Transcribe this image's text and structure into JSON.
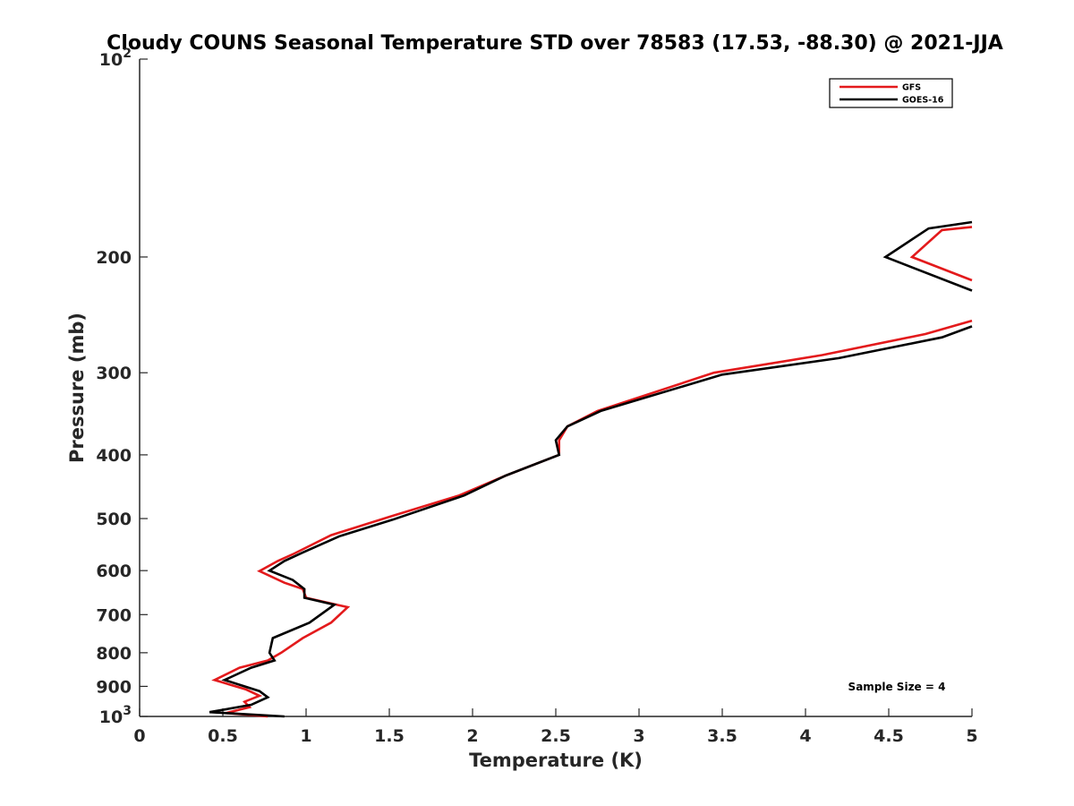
{
  "chart_data": {
    "type": "line",
    "title": "Cloudy COUNS Seasonal Temperature STD over 78583 (17.53, -88.30) @ 2021-JJA",
    "xlabel": "Temperature (K)",
    "ylabel": "Pressure (mb)",
    "xlim": [
      0,
      5
    ],
    "ylim": [
      100,
      1000
    ],
    "yscale": "log",
    "yreversed": true,
    "grid": false,
    "legend_location": "top-right",
    "x_ticks": [
      {
        "value": 0,
        "label": "0"
      },
      {
        "value": 0.5,
        "label": "0.5"
      },
      {
        "value": 1,
        "label": "1"
      },
      {
        "value": 1.5,
        "label": "1.5"
      },
      {
        "value": 2,
        "label": "2"
      },
      {
        "value": 2.5,
        "label": "2.5"
      },
      {
        "value": 3,
        "label": "3"
      },
      {
        "value": 3.5,
        "label": "3.5"
      },
      {
        "value": 4,
        "label": "4"
      },
      {
        "value": 4.5,
        "label": "4.5"
      },
      {
        "value": 5,
        "label": "5"
      }
    ],
    "y_ticks": [
      {
        "value": 100,
        "label": "10",
        "exponent": "2"
      },
      {
        "value": 200,
        "label": "200"
      },
      {
        "value": 300,
        "label": "300"
      },
      {
        "value": 400,
        "label": "400"
      },
      {
        "value": 500,
        "label": "500"
      },
      {
        "value": 600,
        "label": "600"
      },
      {
        "value": 700,
        "label": "700"
      },
      {
        "value": 800,
        "label": "800"
      },
      {
        "value": 900,
        "label": "900"
      },
      {
        "value": 1000,
        "label": "10",
        "exponent": "3"
      }
    ],
    "series": [
      {
        "name": "GFS",
        "color": "#e31a1c",
        "segments": [
          [
            [
              5.0,
              180
            ],
            [
              4.82,
              182
            ],
            [
              4.64,
              200
            ],
            [
              5.0,
              217
            ]
          ],
          [
            [
              5.0,
              250
            ],
            [
              4.72,
              262
            ],
            [
              4.1,
              282
            ],
            [
              3.45,
              300
            ],
            [
              2.75,
              343
            ],
            [
              2.57,
              362
            ],
            [
              2.52,
              380
            ],
            [
              2.52,
              400
            ],
            [
              2.2,
              430
            ],
            [
              1.92,
              461
            ],
            [
              1.5,
              497
            ],
            [
              1.15,
              530
            ],
            [
              0.93,
              565
            ],
            [
              0.83,
              580
            ],
            [
              0.72,
              601
            ],
            [
              0.87,
              626
            ],
            [
              0.98,
              640
            ],
            [
              1.0,
              660
            ],
            [
              1.25,
              682
            ],
            [
              1.15,
              720
            ],
            [
              0.98,
              760
            ],
            [
              0.85,
              800
            ],
            [
              0.77,
              822
            ],
            [
              0.6,
              843
            ],
            [
              0.45,
              880
            ],
            [
              0.64,
              910
            ],
            [
              0.72,
              930
            ],
            [
              0.63,
              950
            ],
            [
              0.66,
              968
            ],
            [
              0.52,
              988
            ],
            [
              0.77,
              1000
            ]
          ]
        ]
      },
      {
        "name": "GOES-16",
        "color": "#000000",
        "segments": [
          [
            [
              5.0,
              177
            ],
            [
              4.74,
              181
            ],
            [
              4.48,
              200
            ],
            [
              5.0,
              225
            ]
          ],
          [
            [
              5.0,
              255
            ],
            [
              4.82,
              265
            ],
            [
              4.2,
              285
            ],
            [
              3.5,
              302
            ],
            [
              2.77,
              343
            ],
            [
              2.57,
              362
            ],
            [
              2.5,
              380
            ],
            [
              2.52,
              400
            ],
            [
              2.2,
              430
            ],
            [
              1.95,
              461
            ],
            [
              1.52,
              502
            ],
            [
              1.2,
              532
            ],
            [
              0.98,
              563
            ],
            [
              0.87,
              580
            ],
            [
              0.78,
              600
            ],
            [
              0.92,
              620
            ],
            [
              0.99,
              640
            ],
            [
              0.99,
              660
            ],
            [
              1.17,
              676
            ],
            [
              1.02,
              720
            ],
            [
              0.8,
              760
            ],
            [
              0.78,
              800
            ],
            [
              0.81,
              822
            ],
            [
              0.67,
              843
            ],
            [
              0.51,
              880
            ],
            [
              0.72,
              915
            ],
            [
              0.77,
              935
            ],
            [
              0.67,
              960
            ],
            [
              0.42,
              985
            ],
            [
              0.87,
              1000
            ]
          ]
        ]
      }
    ],
    "annotation": "Sample Size = 4"
  }
}
